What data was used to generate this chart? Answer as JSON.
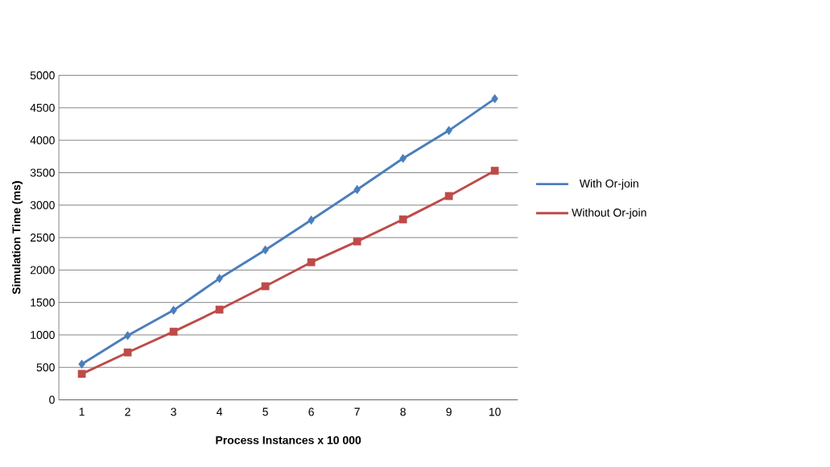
{
  "chart_data": {
    "type": "line",
    "xlabel": "Process Instances x 10 000",
    "ylabel": "Simulation Time (ms)",
    "categories": [
      "1",
      "2",
      "3",
      "4",
      "5",
      "6",
      "7",
      "8",
      "9",
      "10"
    ],
    "series": [
      {
        "name": "With Or-join",
        "color": "#4a7ebb",
        "marker": "diamond",
        "values": [
          550,
          990,
          1380,
          1870,
          2310,
          2770,
          3240,
          3720,
          4150,
          4640
        ]
      },
      {
        "name": "Without Or-join",
        "color": "#be4b48",
        "marker": "square",
        "values": [
          400,
          730,
          1050,
          1390,
          1750,
          2120,
          2440,
          2780,
          3140,
          3530
        ]
      }
    ],
    "ylim": [
      0,
      5000
    ],
    "yticks": [
      0,
      500,
      1000,
      1500,
      2000,
      2500,
      3000,
      3500,
      4000,
      4500,
      5000
    ],
    "grid": "y",
    "legend": "right"
  }
}
